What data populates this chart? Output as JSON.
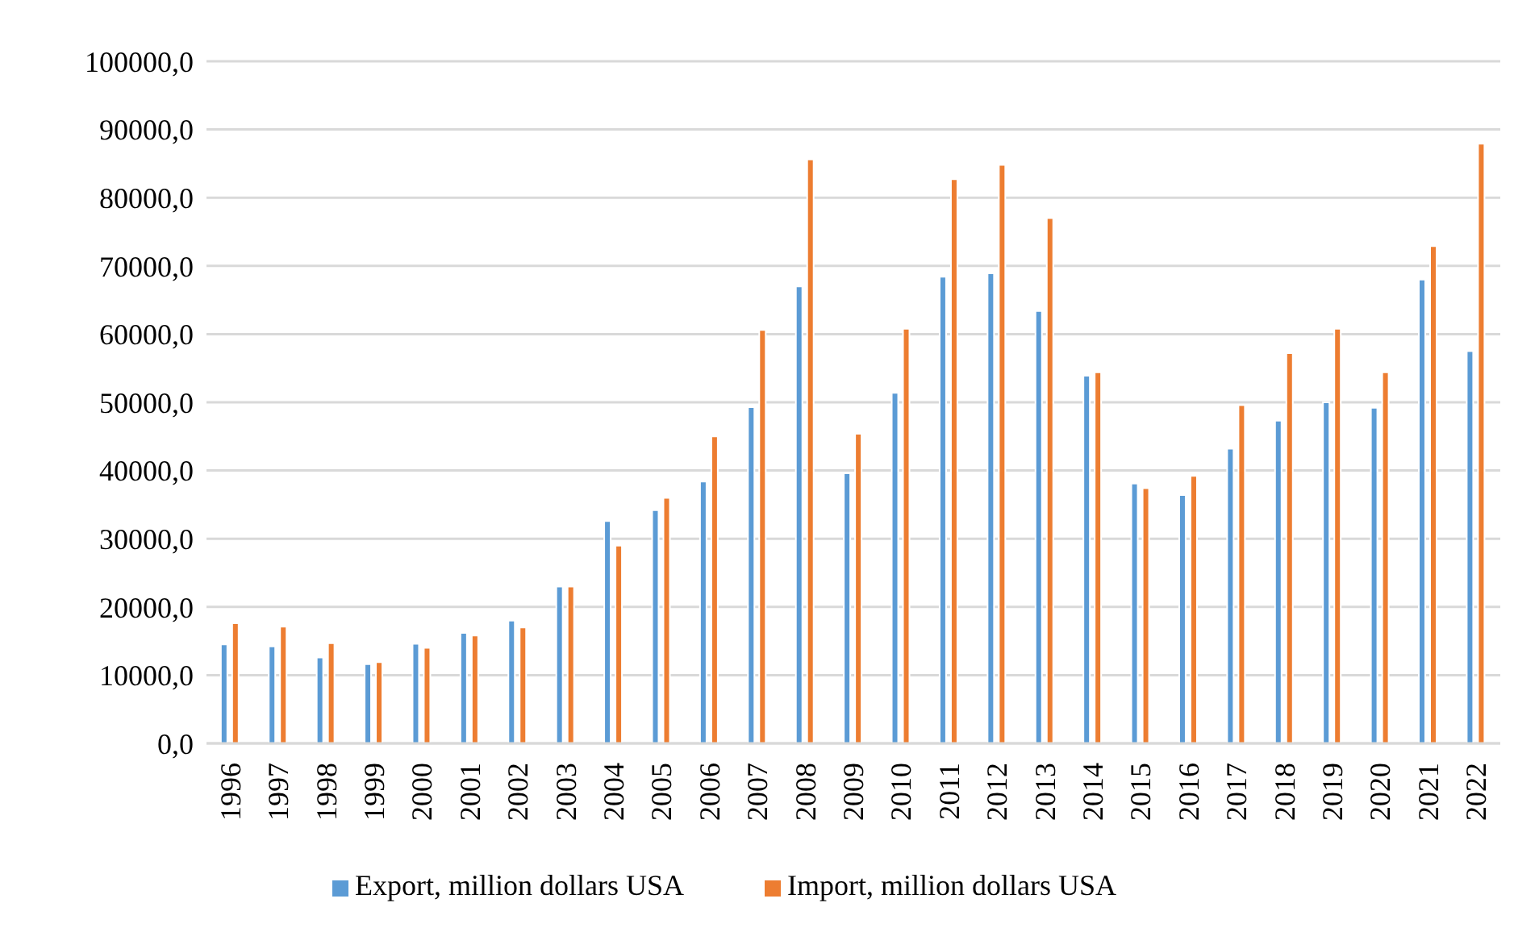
{
  "chart_data": {
    "type": "bar",
    "categories": [
      "1996",
      "1997",
      "1998",
      "1999",
      "2000",
      "2001",
      "2002",
      "2003",
      "2004",
      "2005",
      "2006",
      "2007",
      "2008",
      "2009",
      "2010",
      "2011",
      "2012",
      "2013",
      "2014",
      "2015",
      "2016",
      "2017",
      "2018",
      "2019",
      "2020",
      "2021",
      "2022"
    ],
    "series": [
      {
        "name": "Export, million dollars USA",
        "color": "#5b9bd5",
        "values": [
          14500,
          14200,
          12600,
          11600,
          14600,
          16200,
          18000,
          23000,
          32600,
          34200,
          38400,
          49300,
          67000,
          39600,
          51400,
          68400,
          68900,
          63400,
          53900,
          38100,
          36400,
          43200,
          47300,
          50000,
          49200,
          68000,
          57500
        ]
      },
      {
        "name": "Import, million dollars USA",
        "color": "#ed7d31",
        "values": [
          17600,
          17100,
          14700,
          11900,
          14000,
          15800,
          17000,
          23000,
          29000,
          36000,
          45000,
          60600,
          85600,
          45400,
          60800,
          82700,
          84800,
          77000,
          54400,
          37400,
          39200,
          49600,
          57200,
          60800,
          54400,
          72900,
          87900
        ]
      }
    ],
    "ylim": [
      0,
      100000
    ],
    "yticks": [
      {
        "value": 0,
        "label": "0,0"
      },
      {
        "value": 10000,
        "label": "10000,0"
      },
      {
        "value": 20000,
        "label": "20000,0"
      },
      {
        "value": 30000,
        "label": "30000,0"
      },
      {
        "value": 40000,
        "label": "40000,0"
      },
      {
        "value": 50000,
        "label": "50000,0"
      },
      {
        "value": 60000,
        "label": "60000,0"
      },
      {
        "value": 70000,
        "label": "70000,0"
      },
      {
        "value": 80000,
        "label": "80000,0"
      },
      {
        "value": 90000,
        "label": "90000,0"
      },
      {
        "value": 100000,
        "label": "100000,0"
      }
    ],
    "grid": "y",
    "legend": "bottom"
  }
}
